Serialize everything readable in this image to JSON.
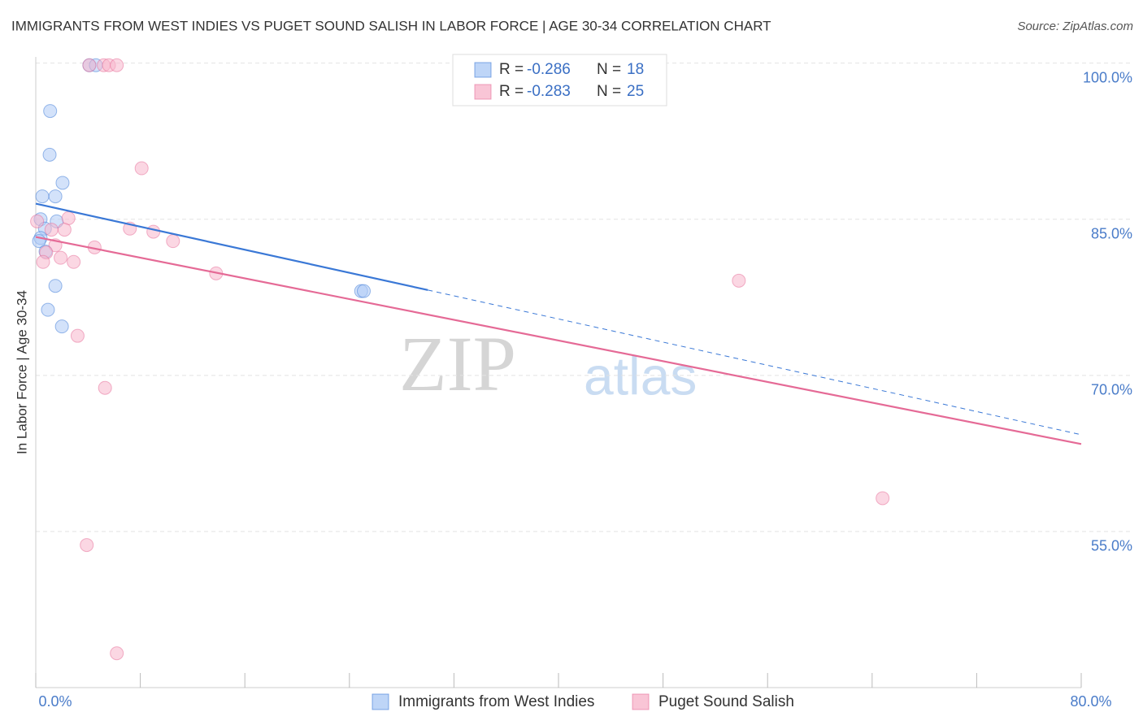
{
  "chart_data": {
    "type": "scatter",
    "title": "IMMIGRANTS FROM WEST INDIES VS PUGET SOUND SALISH IN LABOR FORCE | AGE 30-34 CORRELATION CHART",
    "source": "Source: ZipAtlas.com",
    "y_label": "In Labor Force | Age 30-34",
    "watermark": [
      "ZIP",
      "atlas"
    ],
    "legend_labels": {
      "r": "R =",
      "n": "N ="
    },
    "xlim": [
      0,
      80
    ],
    "ylim": [
      40,
      100.6
    ],
    "xticks": [
      {
        "value": 0,
        "label": "0.0%"
      },
      {
        "value": 80,
        "label": "80.0%"
      }
    ],
    "xminor_ticks": [
      8,
      16,
      24,
      32,
      40,
      48,
      56,
      64,
      72
    ],
    "yticks": [
      {
        "value": 100,
        "label": "100.0%"
      },
      {
        "value": 85,
        "label": "85.0%"
      },
      {
        "value": 70,
        "label": "70.0%"
      },
      {
        "value": 55,
        "label": "55.0%"
      }
    ],
    "grid": true,
    "series": [
      {
        "name": "Immigrants from West Indies",
        "color": "#3a78d6",
        "fill": "#aecbf5",
        "r": -0.286,
        "n": 18,
        "trend": {
          "x": [
            0,
            30,
            80
          ],
          "y": [
            86.5,
            78.2,
            64.3
          ]
        },
        "x": [
          4.1,
          4.6,
          1.1,
          1.06,
          2.05,
          0.5,
          1.5,
          0.37,
          1.6,
          0.7,
          0.37,
          0.25,
          0.75,
          1.5,
          0.93,
          2.0,
          24.9,
          25.1
        ],
        "values": [
          99.8,
          99.8,
          95.4,
          91.2,
          88.5,
          87.2,
          87.2,
          85.0,
          84.8,
          84.1,
          83.2,
          82.9,
          81.9,
          78.6,
          76.3,
          74.7,
          78.1,
          78.1
        ]
      },
      {
        "name": "Puget Sound Salish",
        "color": "#e56a96",
        "fill": "#f7b7cc",
        "r": -0.283,
        "n": 25,
        "trend": {
          "x": [
            0,
            80
          ],
          "y": [
            83.3,
            63.4
          ]
        },
        "x": [
          4.1,
          5.2,
          5.6,
          6.2,
          8.1,
          2.5,
          0.1,
          1.2,
          2.2,
          7.2,
          9.0,
          10.5,
          4.5,
          1.5,
          0.8,
          1.9,
          2.9,
          0.56,
          13.8,
          53.8,
          3.2,
          5.3,
          64.8,
          3.9,
          6.2
        ],
        "values": [
          99.8,
          99.8,
          99.8,
          99.8,
          89.9,
          85.1,
          84.8,
          84.0,
          84.0,
          84.1,
          83.8,
          82.9,
          82.3,
          82.5,
          81.8,
          81.3,
          80.9,
          80.9,
          79.8,
          79.1,
          73.8,
          68.8,
          58.2,
          53.7,
          43.3
        ]
      }
    ]
  }
}
